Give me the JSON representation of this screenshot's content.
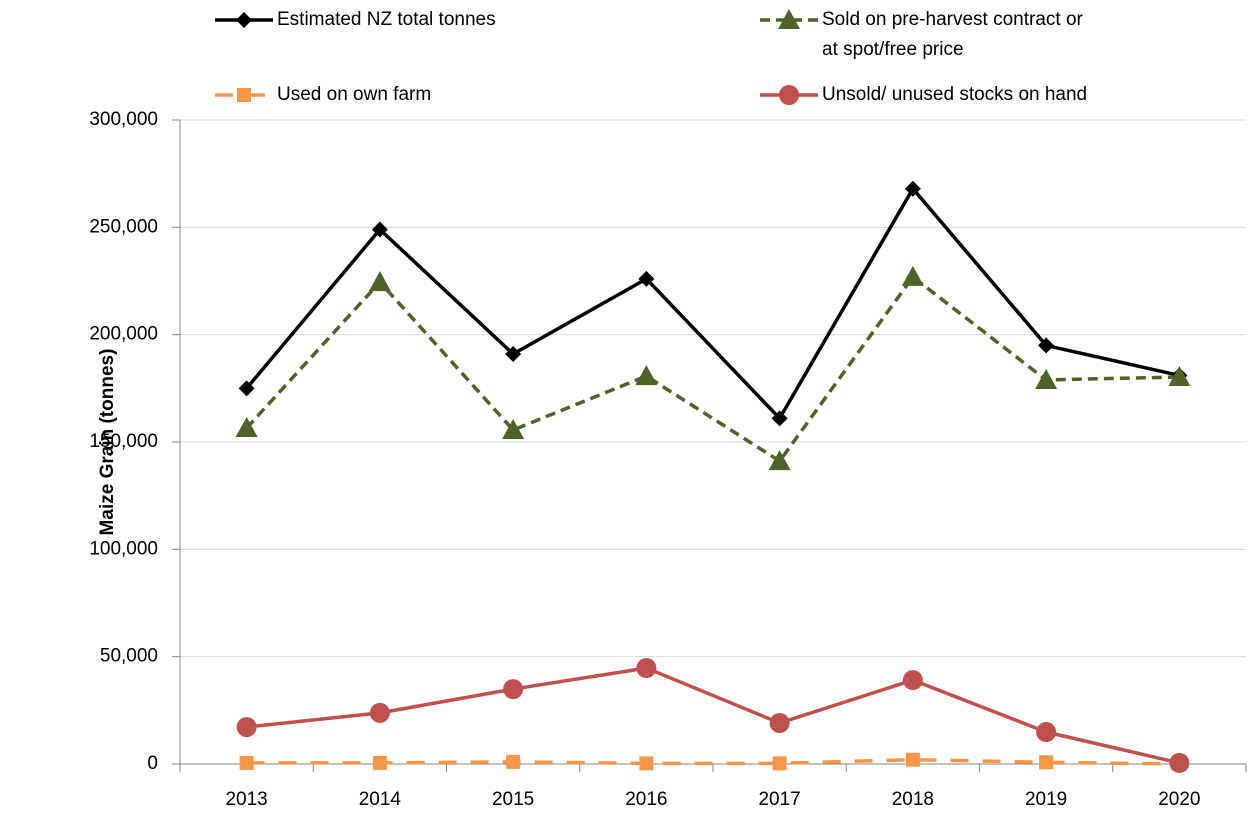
{
  "chart_data": {
    "type": "line",
    "y_label": "Maize Grain (tonnes)",
    "categories": [
      "2013",
      "2014",
      "2015",
      "2016",
      "2017",
      "2018",
      "2019",
      "2020"
    ],
    "series": [
      {
        "name": "Estimated NZ total tonnes",
        "color": "#000000",
        "marker": "diamond",
        "dash": "solid",
        "values": [
          175000,
          249000,
          191000,
          226000,
          161000,
          268000,
          195000,
          181000
        ]
      },
      {
        "name": "Sold on pre-harvest contract or at spot/free price",
        "color": "#4f6228",
        "marker": "triangle",
        "dash": "dashed",
        "values": [
          156500,
          224500,
          155600,
          180700,
          141100,
          226900,
          178900,
          180300
        ]
      },
      {
        "name": "Used on own farm",
        "color": "#f79646",
        "marker": "square",
        "dash": "longdash",
        "values": [
          500,
          500,
          1000,
          300,
          300,
          2000,
          800,
          0
        ]
      },
      {
        "name": "Unsold/ unused stocks on hand",
        "color": "#c0504d",
        "marker": "circle",
        "dash": "solid",
        "values": [
          17200,
          23800,
          34900,
          44700,
          19100,
          39100,
          14900,
          500
        ]
      }
    ],
    "ylim": [
      0,
      300000
    ],
    "yticks": [
      0,
      {
        "value": 50000,
        "label": "50,000"
      },
      {
        "value": 100000,
        "label": "100,000"
      },
      {
        "value": 150000,
        "label": "150,000"
      },
      {
        "value": 200000,
        "label": "200,000"
      },
      {
        "value": 250000,
        "label": "250,000"
      },
      {
        "value": 300000,
        "label": "300,000"
      }
    ],
    "grid": true
  }
}
